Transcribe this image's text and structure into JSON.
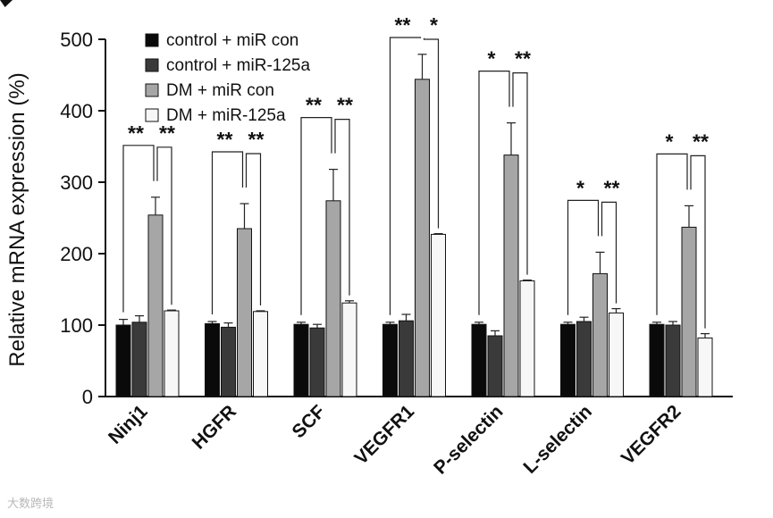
{
  "chart_data": {
    "type": "bar",
    "title": "",
    "xlabel": "",
    "ylabel": "Relative mRNA expression (%)",
    "ylim": [
      0,
      500
    ],
    "yticks": [
      "0",
      "100",
      "200",
      "300",
      "400",
      "500"
    ],
    "categories": [
      "Ninj1",
      "HGFR",
      "SCF",
      "VEGFR1",
      "P-selectin",
      "L-selectin",
      "VEGFR2"
    ],
    "legend_position": "top-left",
    "series": [
      {
        "name": "control + miR con",
        "color": "#0a0a0a",
        "values": [
          100,
          102,
          101,
          101,
          101,
          101,
          101
        ],
        "errors": [
          8,
          3,
          3,
          3,
          3,
          3,
          3
        ]
      },
      {
        "name": "control + miR-125a",
        "color": "#3a3a3a",
        "values": [
          104,
          97,
          96,
          106,
          85,
          105,
          100
        ],
        "errors": [
          9,
          6,
          5,
          9,
          7,
          6,
          5
        ]
      },
      {
        "name": "DM + miR con",
        "color": "#a6a6a6",
        "values": [
          254,
          235,
          274,
          444,
          338,
          172,
          237
        ],
        "errors": [
          25,
          35,
          44,
          35,
          45,
          30,
          30
        ]
      },
      {
        "name": "DM + miR-125a",
        "color": "#f7f7f7",
        "values": [
          120,
          119,
          131,
          227,
          162,
          117,
          82
        ],
        "errors": [
          1,
          1,
          3,
          1,
          1,
          6,
          6
        ]
      }
    ],
    "significance": [
      {
        "category": "Ninj1",
        "left": "**",
        "right": "**"
      },
      {
        "category": "HGFR",
        "left": "**",
        "right": "**"
      },
      {
        "category": "SCF",
        "left": "**",
        "right": "**"
      },
      {
        "category": "VEGFR1",
        "left": "**",
        "right": "*"
      },
      {
        "category": "P-selectin",
        "left": "*",
        "right": "**"
      },
      {
        "category": "L-selectin",
        "left": "*",
        "right": "**"
      },
      {
        "category": "VEGFR2",
        "left": "*",
        "right": "**"
      }
    ]
  },
  "watermark": "大数跨境"
}
